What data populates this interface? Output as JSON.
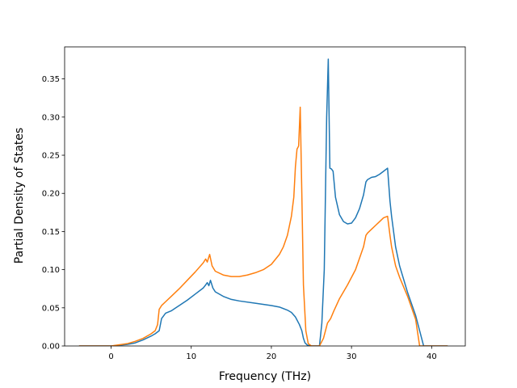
{
  "chart_data": {
    "type": "line",
    "title": "",
    "xlabel": "Frequency (THz)",
    "ylabel": "Partial Density of States",
    "xlim": [
      -5.8,
      44.2
    ],
    "ylim": [
      0.0,
      0.392
    ],
    "xticks": [
      0,
      10,
      20,
      30,
      40
    ],
    "yticks": [
      0.0,
      0.05,
      0.1,
      0.15,
      0.2,
      0.25,
      0.3,
      0.35
    ],
    "ytick_labels": [
      "0.00",
      "0.05",
      "0.10",
      "0.15",
      "0.20",
      "0.25",
      "0.30",
      "0.35"
    ],
    "grid": false,
    "legend": "none",
    "series": [
      {
        "color": "#1f77b4",
        "x": [
          -4,
          0,
          2,
          3,
          4,
          5,
          5.5,
          6,
          6.3,
          6.8,
          7.5,
          8.5,
          9.5,
          10.5,
          11.5,
          11.8,
          12.0,
          12.2,
          12.4,
          12.7,
          13,
          14,
          15,
          16,
          18,
          20,
          21,
          22,
          22.5,
          23,
          23.5,
          23.8,
          24,
          24.2,
          24.5,
          25,
          25.5,
          26,
          26.3,
          26.6,
          26.9,
          27.1,
          27.3,
          27.5,
          27.7,
          28,
          28.5,
          29,
          29.5,
          30,
          30.5,
          31,
          31.5,
          31.8,
          32,
          32.5,
          33,
          33.5,
          34,
          34.5,
          34.8,
          35,
          35.5,
          36,
          37,
          38,
          38.5,
          39,
          40,
          42
        ],
        "y": [
          0.0,
          0.0,
          0.002,
          0.004,
          0.008,
          0.013,
          0.016,
          0.02,
          0.036,
          0.043,
          0.046,
          0.053,
          0.06,
          0.068,
          0.076,
          0.08,
          0.083,
          0.079,
          0.086,
          0.076,
          0.071,
          0.065,
          0.061,
          0.059,
          0.056,
          0.053,
          0.051,
          0.047,
          0.044,
          0.038,
          0.028,
          0.02,
          0.01,
          0.004,
          0.001,
          0.0,
          0.0,
          0.0,
          0.03,
          0.1,
          0.3,
          0.376,
          0.233,
          0.232,
          0.229,
          0.195,
          0.172,
          0.163,
          0.16,
          0.161,
          0.168,
          0.18,
          0.198,
          0.215,
          0.218,
          0.221,
          0.222,
          0.225,
          0.229,
          0.233,
          0.19,
          0.17,
          0.13,
          0.105,
          0.07,
          0.04,
          0.02,
          0.0,
          0.0,
          0.0
        ]
      },
      {
        "color": "#ff7f0e",
        "x": [
          -4,
          0,
          2,
          3,
          4,
          5,
          5.5,
          5.8,
          6.0,
          6.3,
          6.8,
          7.5,
          8.5,
          9.5,
          10.5,
          11.5,
          11.8,
          12.0,
          12.3,
          12.6,
          13,
          14,
          15,
          16,
          17,
          18,
          19,
          20,
          21,
          21.5,
          22,
          22.5,
          22.8,
          23.0,
          23.2,
          23.4,
          23.6,
          23.8,
          24.0,
          24.3,
          24.6,
          25,
          26,
          26.5,
          27,
          27.4,
          27.8,
          28.5,
          29.5,
          30.5,
          31.5,
          31.8,
          32,
          32.5,
          33,
          33.5,
          34,
          34.5,
          34.8,
          35,
          35.5,
          36,
          37,
          38,
          38.5,
          39,
          40,
          42
        ],
        "y": [
          0.0,
          0.0,
          0.003,
          0.006,
          0.01,
          0.016,
          0.02,
          0.028,
          0.048,
          0.053,
          0.058,
          0.065,
          0.075,
          0.086,
          0.097,
          0.109,
          0.114,
          0.11,
          0.12,
          0.105,
          0.098,
          0.093,
          0.091,
          0.091,
          0.093,
          0.096,
          0.1,
          0.107,
          0.12,
          0.13,
          0.145,
          0.17,
          0.195,
          0.235,
          0.258,
          0.262,
          0.313,
          0.2,
          0.08,
          0.02,
          0.003,
          0.0,
          0.0,
          0.01,
          0.03,
          0.036,
          0.046,
          0.062,
          0.08,
          0.1,
          0.13,
          0.145,
          0.148,
          0.153,
          0.158,
          0.163,
          0.168,
          0.17,
          0.145,
          0.13,
          0.105,
          0.09,
          0.065,
          0.035,
          0.0,
          0.0,
          0.0,
          0.0
        ]
      }
    ]
  }
}
